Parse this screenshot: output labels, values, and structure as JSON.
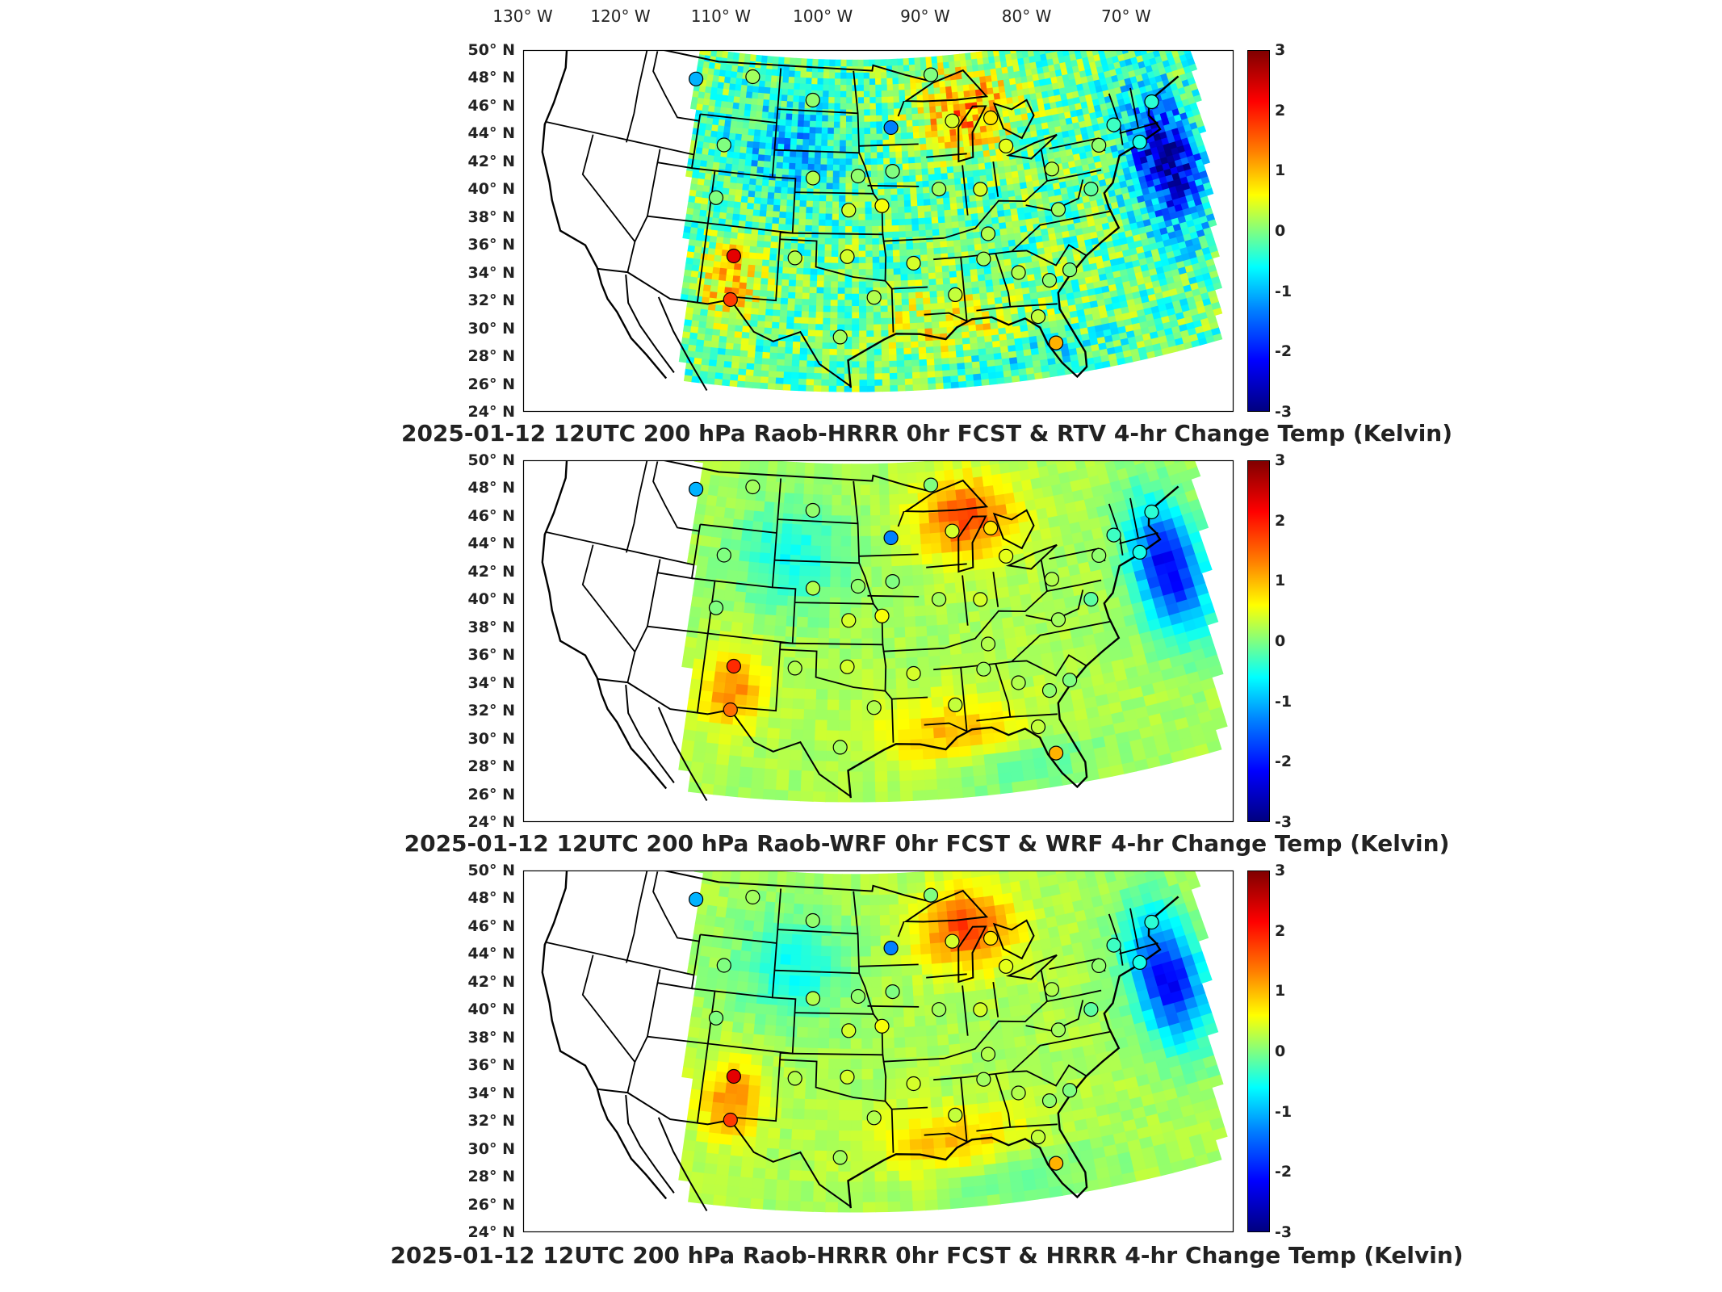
{
  "longitude_labels": [
    "130° W",
    "120° W",
    "110° W",
    "100° W",
    "90° W",
    "80° W",
    "70° W"
  ],
  "latitude_labels": [
    "50° N",
    "48° N",
    "46° N",
    "44° N",
    "42° N",
    "40° N",
    "38° N",
    "36° N",
    "34° N",
    "32° N",
    "30° N",
    "28° N",
    "26° N",
    "24° N"
  ],
  "colorbar_ticks": [
    "3",
    "2",
    "1",
    "0",
    "-1",
    "-2",
    "-3"
  ],
  "colorbar_range": [
    -3,
    3
  ],
  "colormap": "jet",
  "panels": [
    {
      "title": "2025-01-12 12UTC 200 hPa Raob-HRRR 0hr FCST & RTV 4-hr Change Temp (Kelvin)",
      "field_style": "noisy",
      "raob_markers": [
        {
          "lon": -111.9,
          "lat": 47.5,
          "value": -1.2
        },
        {
          "lon": -106.6,
          "lat": 48.2,
          "value": 0.2
        },
        {
          "lon": -100.8,
          "lat": 46.8,
          "value": 0.1
        },
        {
          "lon": -93.6,
          "lat": 44.8,
          "value": -1.5
        },
        {
          "lon": -89.6,
          "lat": 48.5,
          "value": 0.0
        },
        {
          "lon": -108.5,
          "lat": 43.0,
          "value": 0.0
        },
        {
          "lon": -100.5,
          "lat": 41.1,
          "value": 0.3
        },
        {
          "lon": -96.6,
          "lat": 41.3,
          "value": 0.1
        },
        {
          "lon": -93.6,
          "lat": 41.6,
          "value": 0.0
        },
        {
          "lon": -108.6,
          "lat": 39.1,
          "value": 0.0
        },
        {
          "lon": -97.4,
          "lat": 38.8,
          "value": 0.5
        },
        {
          "lon": -94.6,
          "lat": 39.1,
          "value": 0.7
        },
        {
          "lon": -106.6,
          "lat": 35.0,
          "value": 2.4
        },
        {
          "lon": -106.5,
          "lat": 31.8,
          "value": 1.9
        },
        {
          "lon": -101.7,
          "lat": 35.2,
          "value": 0.3
        },
        {
          "lon": -97.5,
          "lat": 35.4,
          "value": 0.5
        },
        {
          "lon": -95.4,
          "lat": 32.4,
          "value": 0.3
        },
        {
          "lon": -98.0,
          "lat": 29.5,
          "value": 0.2
        },
        {
          "lon": -92.2,
          "lat": 34.8,
          "value": 0.5
        },
        {
          "lon": -89.1,
          "lat": 32.3,
          "value": 0.4
        },
        {
          "lon": -86.6,
          "lat": 34.7,
          "value": 0.2
        },
        {
          "lon": -84.0,
          "lat": 33.4,
          "value": 0.3
        },
        {
          "lon": -81.7,
          "lat": 32.5,
          "value": 0.1
        },
        {
          "lon": -82.0,
          "lat": 27.9,
          "value": 1.2
        },
        {
          "lon": -83.0,
          "lat": 30.0,
          "value": 0.4
        },
        {
          "lon": -80.0,
          "lat": 33.0,
          "value": 0.0
        },
        {
          "lon": -86.0,
          "lat": 36.5,
          "value": 0.3
        },
        {
          "lon": -89.7,
          "lat": 40.1,
          "value": 0.2
        },
        {
          "lon": -86.2,
          "lat": 39.8,
          "value": 0.5
        },
        {
          "lon": -83.5,
          "lat": 42.7,
          "value": 0.6
        },
        {
          "lon": -84.5,
          "lat": 44.9,
          "value": 0.9
        },
        {
          "lon": -88.0,
          "lat": 45.0,
          "value": 0.5
        },
        {
          "lon": -79.9,
          "lat": 40.5,
          "value": 0.3
        },
        {
          "lon": -80.0,
          "lat": 37.5,
          "value": 0.2
        },
        {
          "lon": -77.0,
          "lat": 38.5,
          "value": -0.2
        },
        {
          "lon": -75.5,
          "lat": 41.5,
          "value": 0.1
        },
        {
          "lon": -73.8,
          "lat": 42.7,
          "value": -0.4
        },
        {
          "lon": -70.0,
          "lat": 43.6,
          "value": -0.5
        },
        {
          "lon": -72.0,
          "lat": 41.0,
          "value": -0.6
        }
      ]
    },
    {
      "title": "2025-01-12 12UTC 200 hPa Raob-WRF 0hr FCST & WRF 4-hr Change Temp (Kelvin)",
      "field_style": "smooth",
      "raob_markers": [
        {
          "lon": -111.9,
          "lat": 47.5,
          "value": -1.2
        },
        {
          "lon": -106.6,
          "lat": 48.2,
          "value": 0.2
        },
        {
          "lon": -100.8,
          "lat": 46.8,
          "value": 0.1
        },
        {
          "lon": -93.6,
          "lat": 44.8,
          "value": -1.5
        },
        {
          "lon": -89.6,
          "lat": 48.5,
          "value": 0.0
        },
        {
          "lon": -108.5,
          "lat": 43.0,
          "value": 0.0
        },
        {
          "lon": -100.5,
          "lat": 41.1,
          "value": 0.3
        },
        {
          "lon": -96.6,
          "lat": 41.3,
          "value": 0.1
        },
        {
          "lon": -93.6,
          "lat": 41.6,
          "value": 0.0
        },
        {
          "lon": -108.6,
          "lat": 39.1,
          "value": 0.0
        },
        {
          "lon": -97.4,
          "lat": 38.8,
          "value": 0.5
        },
        {
          "lon": -94.6,
          "lat": 39.1,
          "value": 0.7
        },
        {
          "lon": -106.6,
          "lat": 35.0,
          "value": 2.0
        },
        {
          "lon": -106.5,
          "lat": 31.8,
          "value": 1.6
        },
        {
          "lon": -101.7,
          "lat": 35.2,
          "value": 0.3
        },
        {
          "lon": -97.5,
          "lat": 35.4,
          "value": 0.5
        },
        {
          "lon": -95.4,
          "lat": 32.4,
          "value": 0.3
        },
        {
          "lon": -98.0,
          "lat": 29.5,
          "value": 0.2
        },
        {
          "lon": -92.2,
          "lat": 34.8,
          "value": 0.5
        },
        {
          "lon": -89.1,
          "lat": 32.3,
          "value": 0.4
        },
        {
          "lon": -86.6,
          "lat": 34.7,
          "value": 0.2
        },
        {
          "lon": -84.0,
          "lat": 33.4,
          "value": 0.3
        },
        {
          "lon": -81.7,
          "lat": 32.5,
          "value": 0.1
        },
        {
          "lon": -82.0,
          "lat": 27.9,
          "value": 1.2
        },
        {
          "lon": -83.0,
          "lat": 30.0,
          "value": 0.4
        },
        {
          "lon": -80.0,
          "lat": 33.0,
          "value": 0.0
        },
        {
          "lon": -86.0,
          "lat": 36.5,
          "value": 0.3
        },
        {
          "lon": -89.7,
          "lat": 40.1,
          "value": 0.2
        },
        {
          "lon": -86.2,
          "lat": 39.8,
          "value": 0.5
        },
        {
          "lon": -83.5,
          "lat": 42.7,
          "value": 0.6
        },
        {
          "lon": -84.5,
          "lat": 44.9,
          "value": 0.9
        },
        {
          "lon": -88.0,
          "lat": 45.0,
          "value": 0.5
        },
        {
          "lon": -79.9,
          "lat": 40.5,
          "value": 0.3
        },
        {
          "lon": -80.0,
          "lat": 37.5,
          "value": 0.2
        },
        {
          "lon": -77.0,
          "lat": 38.5,
          "value": -0.2
        },
        {
          "lon": -75.5,
          "lat": 41.5,
          "value": 0.1
        },
        {
          "lon": -73.8,
          "lat": 42.7,
          "value": -0.4
        },
        {
          "lon": -70.0,
          "lat": 43.6,
          "value": -0.5
        },
        {
          "lon": -72.0,
          "lat": 41.0,
          "value": -0.6
        }
      ]
    },
    {
      "title": "2025-01-12 12UTC 200 hPa Raob-HRRR 0hr FCST & HRRR 4-hr Change Temp (Kelvin)",
      "field_style": "smooth",
      "raob_markers": [
        {
          "lon": -111.9,
          "lat": 47.5,
          "value": -1.2
        },
        {
          "lon": -106.6,
          "lat": 48.2,
          "value": 0.2
        },
        {
          "lon": -100.8,
          "lat": 46.8,
          "value": 0.1
        },
        {
          "lon": -93.6,
          "lat": 44.8,
          "value": -1.5
        },
        {
          "lon": -89.6,
          "lat": 48.5,
          "value": 0.0
        },
        {
          "lon": -108.5,
          "lat": 43.0,
          "value": 0.0
        },
        {
          "lon": -100.5,
          "lat": 41.1,
          "value": 0.3
        },
        {
          "lon": -96.6,
          "lat": 41.3,
          "value": 0.1
        },
        {
          "lon": -93.6,
          "lat": 41.6,
          "value": 0.0
        },
        {
          "lon": -108.6,
          "lat": 39.1,
          "value": 0.0
        },
        {
          "lon": -97.4,
          "lat": 38.8,
          "value": 0.5
        },
        {
          "lon": -94.6,
          "lat": 39.1,
          "value": 0.7
        },
        {
          "lon": -106.6,
          "lat": 35.0,
          "value": 2.4
        },
        {
          "lon": -106.5,
          "lat": 31.8,
          "value": 1.9
        },
        {
          "lon": -101.7,
          "lat": 35.2,
          "value": 0.3
        },
        {
          "lon": -97.5,
          "lat": 35.4,
          "value": 0.5
        },
        {
          "lon": -95.4,
          "lat": 32.4,
          "value": 0.3
        },
        {
          "lon": -98.0,
          "lat": 29.5,
          "value": 0.2
        },
        {
          "lon": -92.2,
          "lat": 34.8,
          "value": 0.5
        },
        {
          "lon": -89.1,
          "lat": 32.3,
          "value": 0.4
        },
        {
          "lon": -86.6,
          "lat": 34.7,
          "value": 0.2
        },
        {
          "lon": -84.0,
          "lat": 33.4,
          "value": 0.3
        },
        {
          "lon": -81.7,
          "lat": 32.5,
          "value": 0.1
        },
        {
          "lon": -82.0,
          "lat": 27.9,
          "value": 1.2
        },
        {
          "lon": -83.0,
          "lat": 30.0,
          "value": 0.4
        },
        {
          "lon": -80.0,
          "lat": 33.0,
          "value": 0.0
        },
        {
          "lon": -86.0,
          "lat": 36.5,
          "value": 0.3
        },
        {
          "lon": -89.7,
          "lat": 40.1,
          "value": 0.2
        },
        {
          "lon": -86.2,
          "lat": 39.8,
          "value": 0.5
        },
        {
          "lon": -83.5,
          "lat": 42.7,
          "value": 0.6
        },
        {
          "lon": -84.5,
          "lat": 44.9,
          "value": 0.9
        },
        {
          "lon": -88.0,
          "lat": 45.0,
          "value": 0.5
        },
        {
          "lon": -79.9,
          "lat": 40.5,
          "value": 0.3
        },
        {
          "lon": -80.0,
          "lat": 37.5,
          "value": 0.2
        },
        {
          "lon": -77.0,
          "lat": 38.5,
          "value": -0.2
        },
        {
          "lon": -75.5,
          "lat": 41.5,
          "value": 0.1
        },
        {
          "lon": -73.8,
          "lat": 42.7,
          "value": -0.4
        },
        {
          "lon": -70.0,
          "lat": 43.6,
          "value": -0.5
        },
        {
          "lon": -72.0,
          "lat": 41.0,
          "value": -0.6
        }
      ]
    }
  ]
}
